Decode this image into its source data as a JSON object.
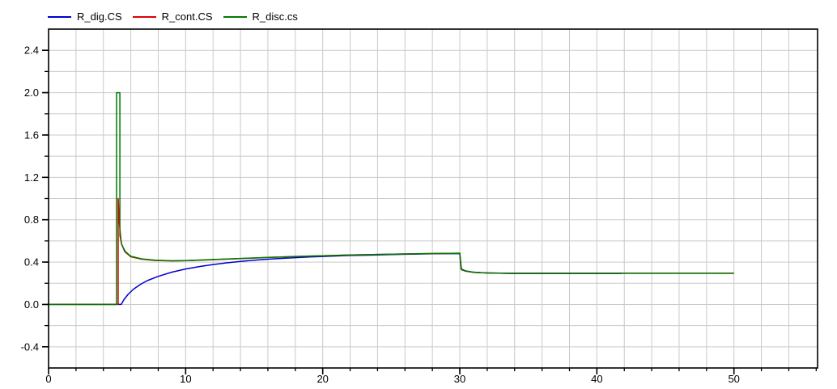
{
  "window": {
    "background": "#ffffff"
  },
  "chart_data": {
    "type": "line",
    "title": "",
    "xlabel": "",
    "ylabel": "",
    "xlim": [
      0,
      56.1
    ],
    "ylim": [
      -0.6,
      2.6
    ],
    "x_major_ticks": [
      0,
      10,
      20,
      30,
      40,
      50
    ],
    "x_minor_step": 2,
    "x_minor_range": [
      2,
      56
    ],
    "x_grid_range": [
      2,
      54
    ],
    "y_major_ticks": [
      -0.4,
      0.0,
      0.4,
      0.8,
      1.2,
      1.6,
      2.0,
      2.4
    ],
    "y_minor_step": 0.2,
    "y_minor_range": [
      -0.4,
      2.4
    ],
    "grid": true,
    "grid_color": "#c9c9c9",
    "axis_color": "#000000",
    "tick_label_color": "#000000",
    "legend_position": "top-left",
    "series": [
      {
        "name": "R_dig.CS",
        "color": "#0000cc",
        "points": [
          [
            0,
            0
          ],
          [
            5.3,
            0
          ],
          [
            5.5,
            0.045
          ],
          [
            5.8,
            0.095
          ],
          [
            6.2,
            0.145
          ],
          [
            6.7,
            0.19
          ],
          [
            7.2,
            0.225
          ],
          [
            8,
            0.265
          ],
          [
            9,
            0.305
          ],
          [
            10,
            0.335
          ],
          [
            11,
            0.358
          ],
          [
            12,
            0.377
          ],
          [
            13,
            0.393
          ],
          [
            14,
            0.406
          ],
          [
            15,
            0.417
          ],
          [
            16,
            0.427
          ],
          [
            17,
            0.435
          ],
          [
            18,
            0.442
          ],
          [
            19,
            0.448
          ],
          [
            20,
            0.453
          ],
          [
            21,
            0.458
          ],
          [
            22,
            0.462
          ],
          [
            23,
            0.465
          ],
          [
            24,
            0.468
          ],
          [
            25,
            0.471
          ],
          [
            26,
            0.474
          ],
          [
            27,
            0.476
          ],
          [
            28,
            0.478
          ],
          [
            29,
            0.48
          ],
          [
            30,
            0.481
          ],
          [
            30.1,
            0.335
          ],
          [
            30.4,
            0.318
          ],
          [
            30.9,
            0.306
          ],
          [
            31.6,
            0.299
          ],
          [
            32.6,
            0.295
          ],
          [
            34,
            0.293
          ],
          [
            41.8,
            0.293
          ]
        ]
      },
      {
        "name": "R_cont.CS",
        "color": "#dd0000",
        "points": [
          [
            0,
            0
          ],
          [
            5.08,
            0
          ],
          [
            5.08,
            1.0
          ],
          [
            5.18,
            0.75
          ],
          [
            5.3,
            0.58
          ],
          [
            5.55,
            0.5
          ],
          [
            6,
            0.45
          ],
          [
            6.8,
            0.427
          ],
          [
            7.8,
            0.415
          ],
          [
            9,
            0.411
          ],
          [
            10,
            0.413
          ],
          [
            12,
            0.423
          ],
          [
            14,
            0.433
          ],
          [
            16,
            0.443
          ],
          [
            18,
            0.452
          ],
          [
            20,
            0.46
          ],
          [
            22,
            0.466
          ],
          [
            24,
            0.472
          ],
          [
            26,
            0.477
          ],
          [
            28,
            0.481
          ],
          [
            30,
            0.484
          ],
          [
            30.1,
            0.33
          ],
          [
            30.4,
            0.315
          ],
          [
            31,
            0.303
          ],
          [
            32,
            0.297
          ],
          [
            33.5,
            0.294
          ],
          [
            50,
            0.294
          ]
        ]
      },
      {
        "name": "R_disc.cs",
        "color": "#007a00",
        "points": [
          [
            0,
            0
          ],
          [
            4.96,
            0
          ],
          [
            4.96,
            2.0
          ],
          [
            5.2,
            2.0
          ],
          [
            5.2,
            0.65
          ],
          [
            5.35,
            0.56
          ],
          [
            5.6,
            0.5
          ],
          [
            6,
            0.455
          ],
          [
            6.8,
            0.43
          ],
          [
            7.8,
            0.417
          ],
          [
            9,
            0.412
          ],
          [
            10,
            0.414
          ],
          [
            12,
            0.424
          ],
          [
            14,
            0.434
          ],
          [
            16,
            0.444
          ],
          [
            18,
            0.453
          ],
          [
            20,
            0.46
          ],
          [
            22,
            0.467
          ],
          [
            24,
            0.472
          ],
          [
            26,
            0.477
          ],
          [
            28,
            0.481
          ],
          [
            30,
            0.484
          ],
          [
            30.12,
            0.328
          ],
          [
            30.45,
            0.314
          ],
          [
            31,
            0.303
          ],
          [
            32,
            0.297
          ],
          [
            33.5,
            0.294
          ],
          [
            50,
            0.294
          ]
        ]
      }
    ]
  }
}
